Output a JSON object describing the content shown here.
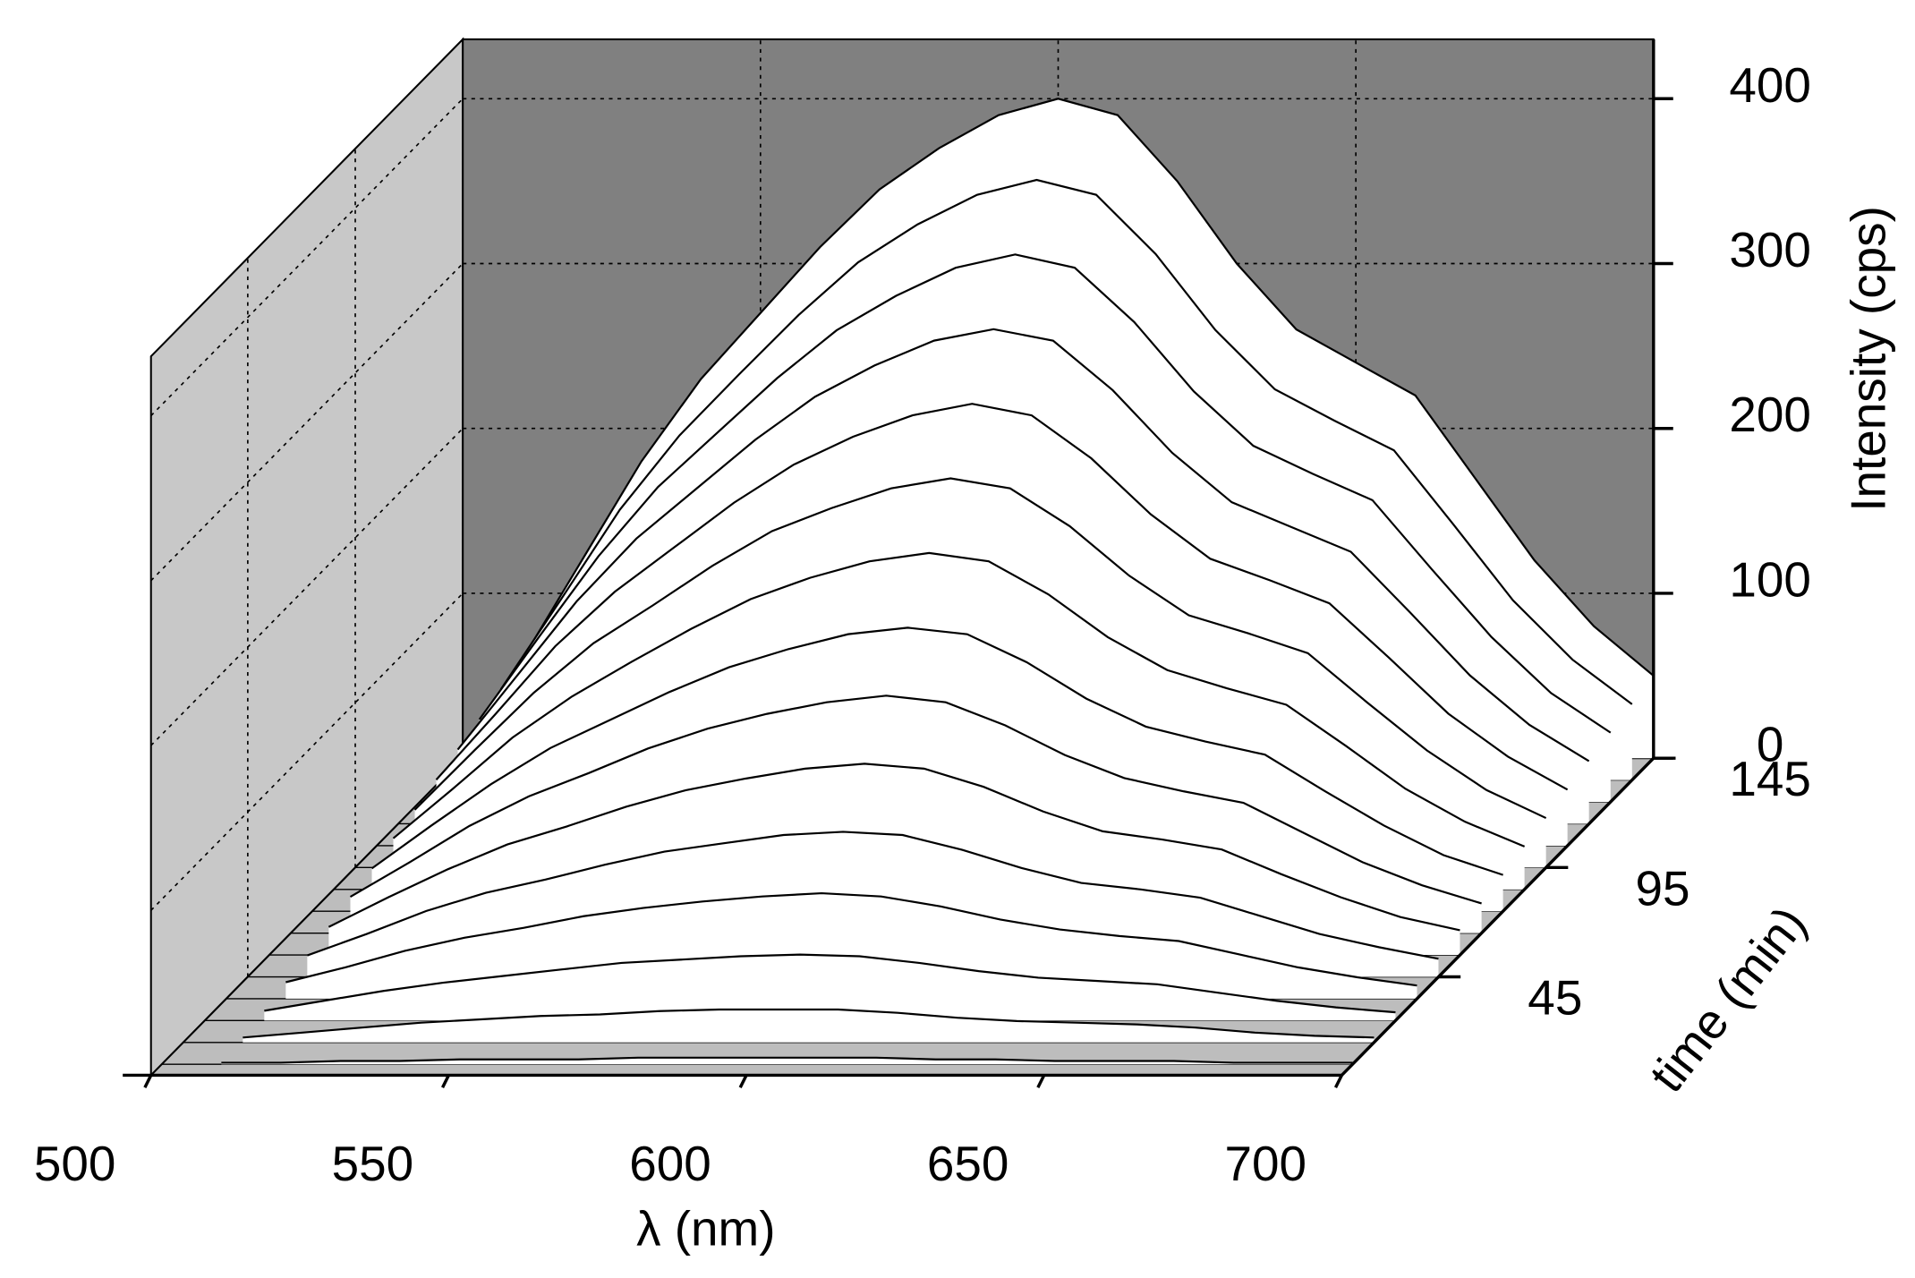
{
  "chart_data": {
    "type": "waterfall",
    "xlabel": "λ (nm)",
    "ylabel": "Intensity (cps)",
    "zlabel": "time (min)",
    "x": [
      510,
      520,
      530,
      540,
      550,
      560,
      570,
      580,
      590,
      600,
      610,
      620,
      630,
      640,
      650,
      660,
      670,
      680,
      690,
      700
    ],
    "xlim": [
      500,
      700
    ],
    "xticks": [
      500,
      550,
      600,
      650,
      700
    ],
    "ylim": [
      0,
      436
    ],
    "yticks": [
      0,
      100,
      200,
      300,
      400
    ],
    "zlim": [
      0,
      145
    ],
    "zticks": [
      45,
      95,
      145
    ],
    "back_color": "#808080",
    "side_color": "#c8c8c8",
    "line_color": "#000000",
    "fill_color": "#ffffff",
    "grid": true,
    "series": [
      {
        "z": 5,
        "values": [
          1,
          1,
          2,
          2,
          3,
          3,
          3,
          4,
          4,
          4,
          4,
          4,
          3,
          3,
          2,
          2,
          2,
          1,
          1,
          1
        ]
      },
      {
        "z": 15,
        "values": [
          3,
          6,
          9,
          12,
          14,
          16,
          17,
          19,
          20,
          20,
          20,
          18,
          15,
          13,
          12,
          11,
          9,
          6,
          4,
          3
        ]
      },
      {
        "z": 25,
        "values": [
          6,
          12,
          18,
          23,
          27,
          31,
          35,
          37,
          39,
          40,
          39,
          35,
          30,
          26,
          24,
          22,
          17,
          12,
          8,
          5
        ]
      },
      {
        "z": 35,
        "values": [
          10,
          19,
          29,
          37,
          43,
          50,
          55,
          59,
          62,
          64,
          62,
          56,
          48,
          42,
          38,
          35,
          27,
          19,
          13,
          8
        ]
      },
      {
        "z": 45,
        "values": [
          13,
          26,
          40,
          51,
          59,
          68,
          76,
          81,
          86,
          88,
          86,
          77,
          66,
          57,
          53,
          48,
          37,
          26,
          18,
          11
        ]
      },
      {
        "z": 55,
        "values": [
          17,
          35,
          52,
          67,
          78,
          90,
          100,
          107,
          113,
          116,
          113,
          102,
          87,
          75,
          70,
          64,
          49,
          35,
          23,
          15
        ]
      },
      {
        "z": 65,
        "values": [
          22,
          43,
          65,
          83,
          97,
          112,
          124,
          133,
          140,
          144,
          140,
          126,
          108,
          94,
          86,
          79,
          61,
          43,
          29,
          18
        ]
      },
      {
        "z": 75,
        "values": [
          26,
          52,
          77,
          99,
          116,
          133,
          148,
          159,
          168,
          172,
          168,
          151,
          129,
          112,
          103,
          95,
          73,
          52,
          34,
          22
        ]
      },
      {
        "z": 85,
        "values": [
          31,
          61,
          92,
          117,
          138,
          158,
          176,
          189,
          199,
          204,
          199,
          179,
          153,
          133,
          122,
          112,
          87,
          61,
          41,
          26
        ]
      },
      {
        "z": 95,
        "values": [
          35,
          71,
          106,
          136,
          159,
          183,
          204,
          218,
          230,
          236,
          230,
          207,
          177,
          153,
          142,
          130,
          100,
          71,
          47,
          30
        ]
      },
      {
        "z": 105,
        "values": [
          40,
          80,
          121,
          154,
          181,
          208,
          231,
          248,
          261,
          268,
          261,
          235,
          201,
          174,
          161,
          147,
          114,
          80,
          54,
          34
        ]
      },
      {
        "z": 115,
        "values": [
          45,
          90,
          135,
          173,
          203,
          233,
          259,
          278,
          293,
          300,
          293,
          263,
          225,
          195,
          180,
          165,
          128,
          90,
          60,
          38
        ]
      },
      {
        "z": 125,
        "values": [
          50,
          100,
          149,
          191,
          224,
          257,
          286,
          307,
          324,
          332,
          324,
          291,
          249,
          216,
          199,
          183,
          141,
          100,
          66,
          42
        ]
      },
      {
        "z": 135,
        "values": [
          55,
          109,
          164,
          209,
          246,
          282,
          314,
          337,
          355,
          364,
          355,
          319,
          273,
          237,
          218,
          200,
          155,
          109,
          73,
          46
        ]
      },
      {
        "z": 145,
        "values": [
          60,
          120,
          180,
          230,
          270,
          310,
          345,
          370,
          390,
          400,
          390,
          350,
          300,
          260,
          240,
          220,
          170,
          120,
          80,
          50
        ]
      }
    ]
  }
}
